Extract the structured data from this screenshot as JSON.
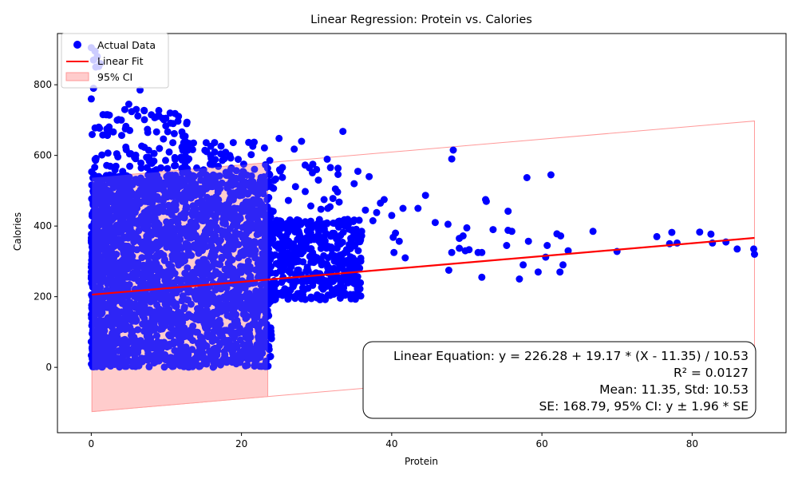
{
  "chart_data": {
    "type": "scatter",
    "title": "Linear Regression: Protein vs. Calories",
    "xlabel": "Protein",
    "ylabel": "Calories",
    "xlim": [
      -4.5,
      92.5
    ],
    "ylim": [
      -185,
      945
    ],
    "xticks": [
      0,
      20,
      40,
      60,
      80
    ],
    "yticks": [
      0,
      200,
      400,
      600,
      800
    ],
    "colors": {
      "points": "#0000ff",
      "fit": "#ff0000",
      "ci_fill": "#ffcccc",
      "ci_edge": "#ff9999"
    },
    "legend": {
      "position": "top-left",
      "entries": [
        {
          "label": "Actual Data",
          "kind": "marker"
        },
        {
          "label": "Linear Fit",
          "kind": "line"
        },
        {
          "label": "95% CI",
          "kind": "patch"
        }
      ]
    },
    "fit": {
      "intercept": 226.28,
      "slope": 19.17,
      "mean": 11.35,
      "std": 10.53,
      "x_range": [
        0.1,
        88.3
      ]
    },
    "ci": {
      "half_width": 331.0,
      "x_range": [
        0.1,
        88.3
      ],
      "dense_x_range": [
        0.1,
        23.5
      ]
    },
    "point_clusters": [
      {
        "x_range": [
          0,
          24
        ],
        "y_range": [
          0,
          545
        ],
        "count": 2600
      },
      {
        "x_range": [
          0,
          13
        ],
        "y_range": [
          540,
          730
        ],
        "count": 110
      },
      {
        "x_range": [
          12,
          24
        ],
        "y_range": [
          540,
          640
        ],
        "count": 60
      },
      {
        "x_range": [
          23,
          36
        ],
        "y_range": [
          190,
          420
        ],
        "count": 450
      },
      {
        "x_range": [
          24,
          33
        ],
        "y_range": [
          420,
          620
        ],
        "count": 25
      }
    ],
    "points": [
      [
        0,
        905
      ],
      [
        0.5,
        895
      ],
      [
        0.8,
        880
      ],
      [
        1.2,
        860
      ],
      [
        0.3,
        870
      ],
      [
        0.6,
        850
      ],
      [
        1.0,
        852
      ],
      [
        0,
        760
      ],
      [
        0.3,
        790
      ],
      [
        6.5,
        785
      ],
      [
        2.0,
        715
      ],
      [
        1.0,
        680
      ],
      [
        4.0,
        700
      ],
      [
        5.0,
        745
      ],
      [
        6.0,
        730
      ],
      [
        8.0,
        715
      ],
      [
        10.5,
        720
      ],
      [
        9.5,
        705
      ],
      [
        33.5,
        668
      ],
      [
        28.0,
        640
      ],
      [
        25.0,
        648
      ],
      [
        29.5,
        575
      ],
      [
        30.0,
        560
      ],
      [
        35.5,
        555
      ],
      [
        37.0,
        540
      ],
      [
        35.0,
        520
      ],
      [
        32.5,
        505
      ],
      [
        31.0,
        475
      ],
      [
        33.0,
        468
      ],
      [
        36.5,
        445
      ],
      [
        38.0,
        438
      ],
      [
        38.5,
        465
      ],
      [
        39.0,
        475
      ],
      [
        40.0,
        430
      ],
      [
        37.5,
        415
      ],
      [
        36.0,
        372
      ],
      [
        35.5,
        360
      ],
      [
        34.5,
        345
      ],
      [
        33.0,
        410
      ],
      [
        31.5,
        450
      ],
      [
        36.0,
        385
      ],
      [
        40.2,
        368
      ],
      [
        40.5,
        380
      ],
      [
        41.0,
        357
      ],
      [
        40.3,
        325
      ],
      [
        41.8,
        310
      ],
      [
        41.5,
        450
      ],
      [
        43.5,
        450
      ],
      [
        44.5,
        487
      ],
      [
        45.8,
        410
      ],
      [
        47.5,
        405
      ],
      [
        48.0,
        325
      ],
      [
        47.6,
        275
      ],
      [
        48.0,
        590
      ],
      [
        48.2,
        615
      ],
      [
        49.0,
        365
      ],
      [
        49.5,
        372
      ],
      [
        49.0,
        337
      ],
      [
        49.8,
        330
      ],
      [
        50.3,
        333
      ],
      [
        50.0,
        395
      ],
      [
        51.5,
        325
      ],
      [
        52.0,
        325
      ],
      [
        52.0,
        255
      ],
      [
        52.5,
        475
      ],
      [
        52.6,
        470
      ],
      [
        53.5,
        390
      ],
      [
        55.5,
        388
      ],
      [
        56.0,
        385
      ],
      [
        55.3,
        345
      ],
      [
        55.5,
        442
      ],
      [
        57.0,
        250
      ],
      [
        57.5,
        290
      ],
      [
        58.0,
        537
      ],
      [
        58.2,
        357
      ],
      [
        59.5,
        270
      ],
      [
        60.5,
        312
      ],
      [
        60.7,
        345
      ],
      [
        61.2,
        545
      ],
      [
        62.0,
        378
      ],
      [
        62.5,
        372
      ],
      [
        62.4,
        270
      ],
      [
        62.8,
        290
      ],
      [
        63.5,
        330
      ],
      [
        66.8,
        385
      ],
      [
        70.0,
        328
      ],
      [
        75.3,
        370
      ],
      [
        77.0,
        350
      ],
      [
        77.3,
        382
      ],
      [
        78.0,
        352
      ],
      [
        81.0,
        383
      ],
      [
        82.5,
        377
      ],
      [
        82.7,
        352
      ],
      [
        84.5,
        355
      ],
      [
        86.0,
        335
      ],
      [
        88.2,
        335
      ],
      [
        88.3,
        320
      ]
    ],
    "annotation": [
      "Linear Equation: y = 226.28 + 19.17 * (X - 11.35) / 10.53",
      "R² = 0.0127",
      "Mean: 11.35, Std: 10.53",
      "SE: 168.79, 95% CI: y ± 1.96 * SE"
    ]
  }
}
